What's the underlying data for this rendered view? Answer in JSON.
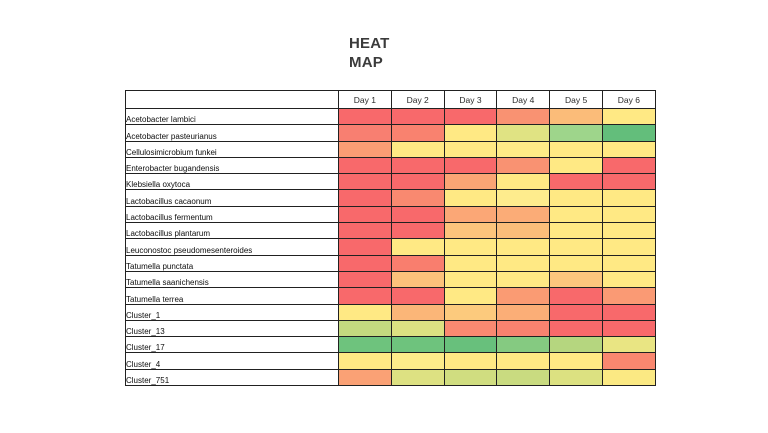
{
  "title_line1": "HEAT",
  "title_line2": "MAP",
  "chart_data": {
    "type": "heatmap",
    "title": "HEAT MAP",
    "legend": "none",
    "grid": "on",
    "color_scale": {
      "low": "#F8696B",
      "mid": "#FFEB84",
      "high": "#63BE7B"
    },
    "columns": [
      "Day 1",
      "Day 2",
      "Day 3",
      "Day 4",
      "Day 5",
      "Day 6"
    ],
    "rows": [
      {
        "label": "Acetobacter lambici",
        "colors": [
          "#F8696B",
          "#F8696B",
          "#F8696B",
          "#F99272",
          "#FBBC79",
          "#FFE984"
        ]
      },
      {
        "label": "Acetobacter pasteurianus",
        "colors": [
          "#F87F71",
          "#F9826F",
          "#FFE984",
          "#E0E383",
          "#9ED58B",
          "#63BE7B"
        ]
      },
      {
        "label": "Cellulosimicrobium funkei",
        "colors": [
          "#FA9D74",
          "#FFE984",
          "#FFE984",
          "#FEEB87",
          "#FFE984",
          "#FFE984"
        ]
      },
      {
        "label": "Enterobacter bugandensis",
        "colors": [
          "#F8696B",
          "#F8696B",
          "#F8696B",
          "#F99272",
          "#FFE984",
          "#F8696B"
        ]
      },
      {
        "label": "Klebsiella oxytoca",
        "colors": [
          "#F8696B",
          "#F8696B",
          "#FAA575",
          "#FFE984",
          "#F8696B",
          "#F8696B"
        ]
      },
      {
        "label": "Lactobacillus cacaonum",
        "colors": [
          "#F8696B",
          "#F98970",
          "#FFE984",
          "#FEEC8D",
          "#FFE984",
          "#FFE984"
        ]
      },
      {
        "label": "Lactobacillus fermentum",
        "colors": [
          "#F8696B",
          "#F8696B",
          "#FBA776",
          "#FBAC77",
          "#FFE984",
          "#FFE984"
        ]
      },
      {
        "label": "Lactobacillus plantarum",
        "colors": [
          "#F8696B",
          "#F8696B",
          "#FCC47C",
          "#FBBD7A",
          "#FFE984",
          "#FFE984"
        ]
      },
      {
        "label": "Leuconostoc pseudomesenteroides",
        "colors": [
          "#F8696B",
          "#FFE984",
          "#FFE984",
          "#FFE984",
          "#FFE984",
          "#FFE984"
        ]
      },
      {
        "label": "Tatumella punctata",
        "colors": [
          "#F8696B",
          "#F97E6E",
          "#FFE984",
          "#FFE984",
          "#FFE984",
          "#FFE984"
        ]
      },
      {
        "label": "Tatumella saanichensis",
        "colors": [
          "#F8696B",
          "#FCC27B",
          "#FFE984",
          "#FFE984",
          "#FCC67D",
          "#FFE984"
        ]
      },
      {
        "label": "Tatumella terrea",
        "colors": [
          "#F8696B",
          "#F8696B",
          "#FFE984",
          "#FA9B73",
          "#F8696B",
          "#FA9A74"
        ]
      },
      {
        "label": "Cluster_1",
        "colors": [
          "#FFE984",
          "#FBB678",
          "#FCCA7D",
          "#FBAE77",
          "#F8696B",
          "#F8696B"
        ]
      },
      {
        "label": "Cluster_13",
        "colors": [
          "#C3D97F",
          "#DCE182",
          "#F98971",
          "#F9826F",
          "#F8696B",
          "#F8696B"
        ]
      },
      {
        "label": "Cluster_17",
        "colors": [
          "#6EC37D",
          "#6EC37D",
          "#68C07C",
          "#85CA81",
          "#B5D67F",
          "#E9E583"
        ]
      },
      {
        "label": "Cluster_4",
        "colors": [
          "#FFE984",
          "#FDEC8A",
          "#FFE984",
          "#FFE984",
          "#FFE984",
          "#F9876F"
        ]
      },
      {
        "label": "Cluster_751",
        "colors": [
          "#FAA175",
          "#DDE182",
          "#D0DD80",
          "#C9DB80",
          "#DCE181",
          "#FBE983"
        ]
      }
    ]
  }
}
